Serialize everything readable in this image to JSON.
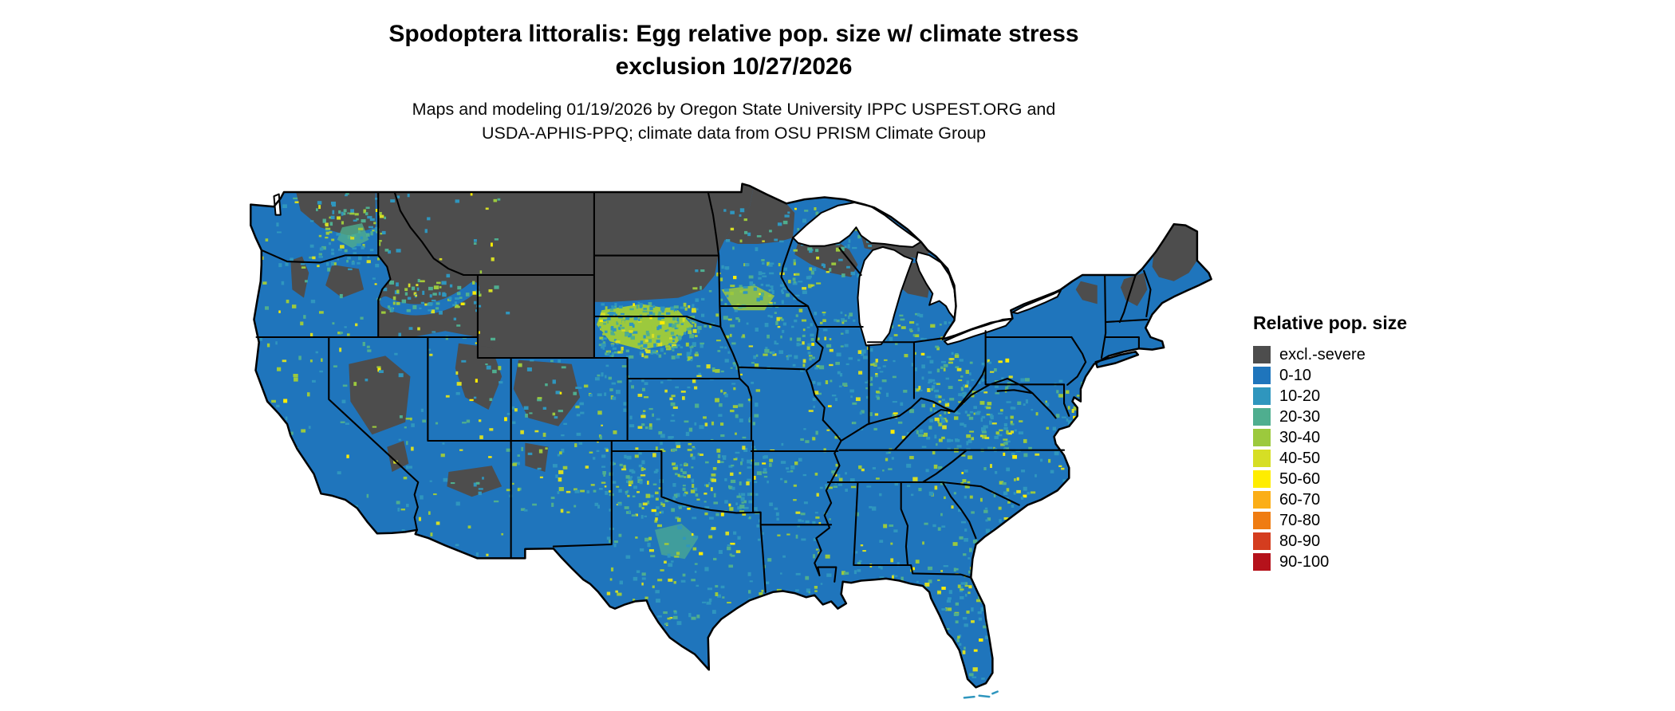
{
  "title": {
    "line1": "Spodoptera littoralis: Egg relative pop. size w/ climate stress",
    "line2": "exclusion 10/27/2026"
  },
  "subtitle": {
    "line1": "Maps and modeling 01/19/2026 by Oregon State University IPPC USPEST.ORG and",
    "line2": "USDA-APHIS-PPQ; climate data from OSU PRISM Climate Group"
  },
  "legend": {
    "title": "Relative pop. size",
    "items": [
      {
        "label": "excl.-severe",
        "color": "#4d4d4d"
      },
      {
        "label": "0-10",
        "color": "#1f75bc"
      },
      {
        "label": "10-20",
        "color": "#2f96be"
      },
      {
        "label": "20-30",
        "color": "#4fae8f"
      },
      {
        "label": "30-40",
        "color": "#9cc93d"
      },
      {
        "label": "40-50",
        "color": "#d6de25"
      },
      {
        "label": "50-60",
        "color": "#ffed00"
      },
      {
        "label": "60-70",
        "color": "#fbae17"
      },
      {
        "label": "70-80",
        "color": "#ef7c12"
      },
      {
        "label": "80-90",
        "color": "#d43d1f"
      },
      {
        "label": "90-100",
        "color": "#b5121b"
      }
    ]
  },
  "map": {
    "water_color": "#ffffff",
    "border_color": "#000000",
    "land_default_class": "0-10",
    "excluded_class": "excl.-severe"
  }
}
